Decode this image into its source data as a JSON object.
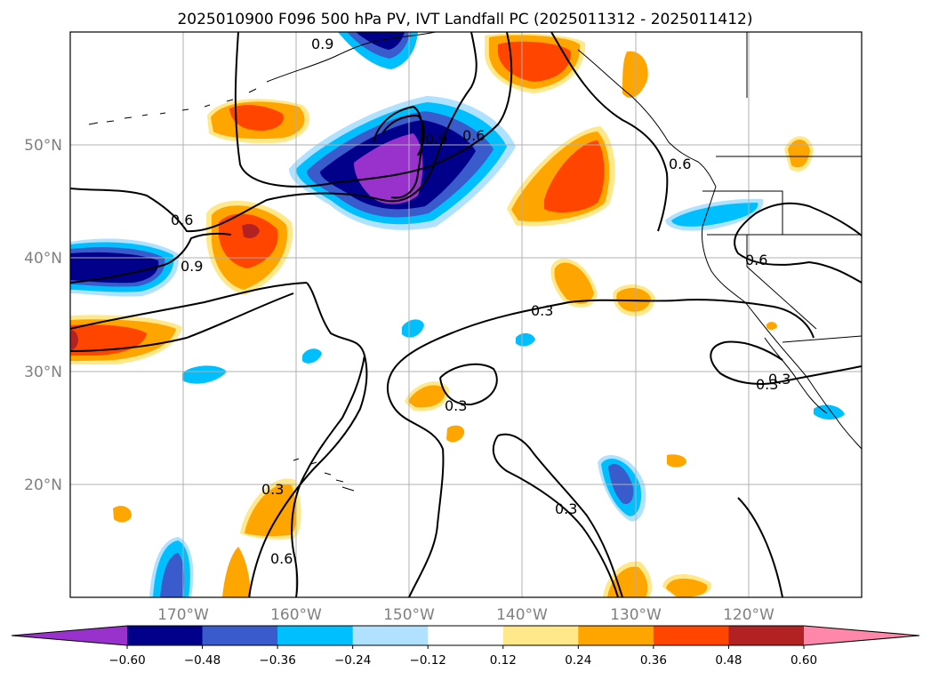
{
  "chart_data": {
    "type": "heatmap",
    "title": "2025010900 F096 500 hPa PV, IVT Landfall PC (2025011312 - 2025011412)",
    "map_extent": {
      "lon": [
        -180,
        -110
      ],
      "lat": [
        10,
        60
      ]
    },
    "grid": true,
    "lat_ticks": [
      {
        "value": 20,
        "label": "20°N"
      },
      {
        "value": 30,
        "label": "30°N"
      },
      {
        "value": 40,
        "label": "40°N"
      },
      {
        "value": 50,
        "label": "50°N"
      }
    ],
    "lon_ticks": [
      {
        "value": -170,
        "label": "170°W"
      },
      {
        "value": -160,
        "label": "160°W"
      },
      {
        "value": -150,
        "label": "150°W"
      },
      {
        "value": -140,
        "label": "140°W"
      },
      {
        "value": -130,
        "label": "130°W"
      },
      {
        "value": -120,
        "label": "120°W"
      }
    ],
    "colorbar": {
      "extend": "both",
      "ticks": [
        "−0.60",
        "−0.48",
        "−0.36",
        "−0.24",
        "−0.12",
        "0.12",
        "0.24",
        "0.36",
        "0.48",
        "0.60"
      ],
      "colors": [
        "#9932cc",
        "#00008b",
        "#3a5bcc",
        "#00bfff",
        "#b0e2ff",
        "#ffffff",
        "#ffe88a",
        "#ffa500",
        "#ff4500",
        "#b22222",
        "#ff88aa"
      ]
    },
    "contour_labels": [
      "0.9",
      "0.6",
      "0.6",
      "0.6",
      "0.9",
      "0.9",
      "0.6",
      "0.3",
      "0.3",
      "0.3",
      "0.3",
      "0.3",
      "0.6",
      "0.3"
    ]
  }
}
